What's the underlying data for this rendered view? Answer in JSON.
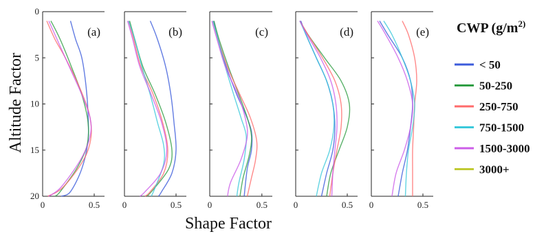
{
  "chart_data": {
    "type": "line",
    "xlabel": "Shape Factor",
    "ylabel": "Altitude Factor",
    "xlim": [
      0,
      0.6
    ],
    "ylim": [
      0,
      20
    ],
    "y_inverted": true,
    "x_ticks": [
      "0",
      "0.5"
    ],
    "y_ticks": [
      "0",
      "5",
      "10",
      "15",
      "20"
    ],
    "legend": {
      "title_main": "CWP (g/m",
      "title_sup": "2)",
      "placement": "right",
      "entries": [
        {
          "label": "< 50",
          "color": "#3b5bdb"
        },
        {
          "label": "50-250",
          "color": "#2f9e44"
        },
        {
          "label": "250-750",
          "color": "#ff6b6b"
        },
        {
          "label": "750-1500",
          "color": "#3bc9db"
        },
        {
          "label": "1500-3000",
          "color": "#cc5de8"
        },
        {
          "label": "3000+",
          "color": "#c0ca33"
        }
      ]
    },
    "panels": [
      {
        "label": "(a)",
        "series": [
          {
            "legend_index": 0,
            "points": [
              [
                0.27,
                1
              ],
              [
                0.32,
                3
              ],
              [
                0.38,
                5
              ],
              [
                0.42,
                8
              ],
              [
                0.44,
                11
              ],
              [
                0.44,
                14
              ],
              [
                0.38,
                17
              ],
              [
                0.27,
                19.5
              ],
              [
                0.18,
                20
              ]
            ]
          },
          {
            "legend_index": 1,
            "points": [
              [
                0.08,
                1
              ],
              [
                0.17,
                3
              ],
              [
                0.28,
                6
              ],
              [
                0.38,
                9
              ],
              [
                0.44,
                12
              ],
              [
                0.43,
                14.5
              ],
              [
                0.33,
                17
              ],
              [
                0.17,
                19.5
              ],
              [
                0.12,
                20
              ]
            ]
          },
          {
            "legend_index": 2,
            "points": [
              [
                0.04,
                1
              ],
              [
                0.12,
                3
              ],
              [
                0.22,
                5
              ],
              [
                0.35,
                8
              ],
              [
                0.45,
                11
              ],
              [
                0.47,
                13.5
              ],
              [
                0.4,
                16
              ],
              [
                0.2,
                19
              ],
              [
                0.05,
                20
              ]
            ]
          },
          {
            "legend_index": 4,
            "points": [
              [
                0.06,
                1
              ],
              [
                0.14,
                3
              ],
              [
                0.26,
                6
              ],
              [
                0.38,
                9
              ],
              [
                0.46,
                11.5
              ],
              [
                0.46,
                13.5
              ],
              [
                0.37,
                16
              ],
              [
                0.18,
                19
              ],
              [
                0.06,
                20
              ]
            ]
          }
        ]
      },
      {
        "label": "(b)",
        "series": [
          {
            "legend_index": 0,
            "points": [
              [
                0.25,
                1
              ],
              [
                0.32,
                3
              ],
              [
                0.4,
                6
              ],
              [
                0.45,
                9
              ],
              [
                0.48,
                12
              ],
              [
                0.5,
                15
              ],
              [
                0.46,
                17.5
              ],
              [
                0.36,
                19.5
              ],
              [
                0.33,
                20
              ]
            ]
          },
          {
            "legend_index": 1,
            "points": [
              [
                0.05,
                1
              ],
              [
                0.1,
                3
              ],
              [
                0.18,
                6
              ],
              [
                0.3,
                9
              ],
              [
                0.4,
                12
              ],
              [
                0.46,
                15
              ],
              [
                0.43,
                17
              ],
              [
                0.3,
                19
              ],
              [
                0.22,
                20
              ]
            ]
          },
          {
            "legend_index": 2,
            "points": [
              [
                0.04,
                1
              ],
              [
                0.09,
                3
              ],
              [
                0.16,
                6
              ],
              [
                0.28,
                9
              ],
              [
                0.37,
                12
              ],
              [
                0.42,
                15
              ],
              [
                0.38,
                17.5
              ],
              [
                0.25,
                19.5
              ],
              [
                0.2,
                20
              ]
            ]
          },
          {
            "legend_index": 3,
            "points": [
              [
                0.04,
                1
              ],
              [
                0.1,
                3
              ],
              [
                0.17,
                6
              ],
              [
                0.25,
                9
              ],
              [
                0.32,
                12
              ],
              [
                0.38,
                14.5
              ],
              [
                0.38,
                16.5
              ],
              [
                0.3,
                19
              ],
              [
                0.26,
                20
              ]
            ]
          },
          {
            "legend_index": 4,
            "points": [
              [
                0.03,
                1
              ],
              [
                0.08,
                3
              ],
              [
                0.15,
                6
              ],
              [
                0.26,
                9
              ],
              [
                0.36,
                12
              ],
              [
                0.41,
                15
              ],
              [
                0.35,
                17.5
              ],
              [
                0.2,
                19.5
              ],
              [
                0.15,
                20
              ]
            ]
          }
        ]
      },
      {
        "label": "(c)",
        "series": [
          {
            "legend_index": 0,
            "points": [
              [
                0.04,
                1
              ],
              [
                0.08,
                3
              ],
              [
                0.16,
                6
              ],
              [
                0.26,
                9
              ],
              [
                0.34,
                11
              ],
              [
                0.4,
                13
              ],
              [
                0.4,
                15
              ],
              [
                0.36,
                17
              ],
              [
                0.33,
                20
              ]
            ]
          },
          {
            "legend_index": 1,
            "points": [
              [
                0.04,
                1
              ],
              [
                0.09,
                3
              ],
              [
                0.18,
                6
              ],
              [
                0.28,
                9
              ],
              [
                0.36,
                11.5
              ],
              [
                0.4,
                13.5
              ],
              [
                0.38,
                15.5
              ],
              [
                0.32,
                18
              ],
              [
                0.29,
                20
              ]
            ]
          },
          {
            "legend_index": 2,
            "points": [
              [
                0.03,
                1
              ],
              [
                0.08,
                3
              ],
              [
                0.17,
                6
              ],
              [
                0.29,
                9
              ],
              [
                0.39,
                11.5
              ],
              [
                0.45,
                14
              ],
              [
                0.44,
                16
              ],
              [
                0.4,
                18
              ],
              [
                0.36,
                20
              ]
            ]
          },
          {
            "legend_index": 3,
            "points": [
              [
                0.03,
                1
              ],
              [
                0.08,
                3
              ],
              [
                0.15,
                6
              ],
              [
                0.23,
                9
              ],
              [
                0.3,
                11.5
              ],
              [
                0.35,
                13.5
              ],
              [
                0.33,
                16
              ],
              [
                0.28,
                18.5
              ],
              [
                0.26,
                20
              ]
            ]
          },
          {
            "legend_index": 4,
            "points": [
              [
                0.02,
                1
              ],
              [
                0.07,
                3
              ],
              [
                0.15,
                6
              ],
              [
                0.27,
                9
              ],
              [
                0.34,
                11.5
              ],
              [
                0.36,
                13.5
              ],
              [
                0.3,
                16
              ],
              [
                0.2,
                18.5
              ],
              [
                0.17,
                20
              ]
            ]
          }
        ]
      },
      {
        "label": "(d)",
        "series": [
          {
            "legend_index": 0,
            "points": [
              [
                0.05,
                1
              ],
              [
                0.1,
                2.5
              ],
              [
                0.2,
                5
              ],
              [
                0.3,
                7.5
              ],
              [
                0.36,
                10
              ],
              [
                0.38,
                12.5
              ],
              [
                0.36,
                15
              ],
              [
                0.3,
                17.5
              ],
              [
                0.25,
                20
              ]
            ]
          },
          {
            "legend_index": 1,
            "points": [
              [
                0.04,
                1
              ],
              [
                0.12,
                2.5
              ],
              [
                0.28,
                5
              ],
              [
                0.44,
                7.5
              ],
              [
                0.52,
                10
              ],
              [
                0.5,
                12.5
              ],
              [
                0.42,
                15
              ],
              [
                0.34,
                17.5
              ],
              [
                0.3,
                20
              ]
            ]
          },
          {
            "legend_index": 2,
            "points": [
              [
                0.04,
                1
              ],
              [
                0.12,
                2.5
              ],
              [
                0.26,
                5
              ],
              [
                0.38,
                7.5
              ],
              [
                0.44,
                10
              ],
              [
                0.44,
                12.5
              ],
              [
                0.4,
                15
              ],
              [
                0.36,
                17.5
              ],
              [
                0.33,
                20
              ]
            ]
          },
          {
            "legend_index": 3,
            "points": [
              [
                0.04,
                1
              ],
              [
                0.1,
                2.5
              ],
              [
                0.2,
                5
              ],
              [
                0.3,
                7.5
              ],
              [
                0.36,
                10
              ],
              [
                0.37,
                12.5
              ],
              [
                0.33,
                15
              ],
              [
                0.25,
                17.5
              ],
              [
                0.2,
                20
              ]
            ]
          },
          {
            "legend_index": 4,
            "points": [
              [
                0.04,
                1
              ],
              [
                0.11,
                2.5
              ],
              [
                0.24,
                5
              ],
              [
                0.34,
                7.5
              ],
              [
                0.39,
                10
              ],
              [
                0.4,
                12.5
              ],
              [
                0.38,
                15
              ],
              [
                0.36,
                17.5
              ],
              [
                0.35,
                20
              ]
            ]
          }
        ]
      },
      {
        "label": "(e)",
        "series": [
          {
            "legend_index": 0,
            "points": [
              [
                0.08,
                1
              ],
              [
                0.16,
                2.5
              ],
              [
                0.3,
                5
              ],
              [
                0.38,
                7.5
              ],
              [
                0.4,
                10
              ],
              [
                0.38,
                12.5
              ],
              [
                0.35,
                15
              ],
              [
                0.3,
                17.5
              ],
              [
                0.26,
                20
              ]
            ]
          },
          {
            "legend_index": 2,
            "points": [
              [
                0.3,
                1
              ],
              [
                0.36,
                2.5
              ],
              [
                0.42,
                5
              ],
              [
                0.44,
                7.5
              ],
              [
                0.42,
                10
              ],
              [
                0.41,
                12.5
              ],
              [
                0.4,
                15
              ],
              [
                0.4,
                17.5
              ],
              [
                0.4,
                20
              ]
            ]
          },
          {
            "legend_index": 3,
            "points": [
              [
                0.12,
                1
              ],
              [
                0.2,
                2.5
              ],
              [
                0.3,
                5
              ],
              [
                0.38,
                7.5
              ],
              [
                0.42,
                10
              ],
              [
                0.4,
                12.5
              ],
              [
                0.36,
                15
              ],
              [
                0.34,
                17.5
              ],
              [
                0.33,
                20
              ]
            ]
          },
          {
            "legend_index": 4,
            "points": [
              [
                0.06,
                1
              ],
              [
                0.14,
                2.5
              ],
              [
                0.26,
                5
              ],
              [
                0.35,
                7.5
              ],
              [
                0.4,
                10
              ],
              [
                0.38,
                12.5
              ],
              [
                0.32,
                15
              ],
              [
                0.24,
                17.5
              ],
              [
                0.2,
                20
              ]
            ]
          }
        ]
      }
    ]
  }
}
